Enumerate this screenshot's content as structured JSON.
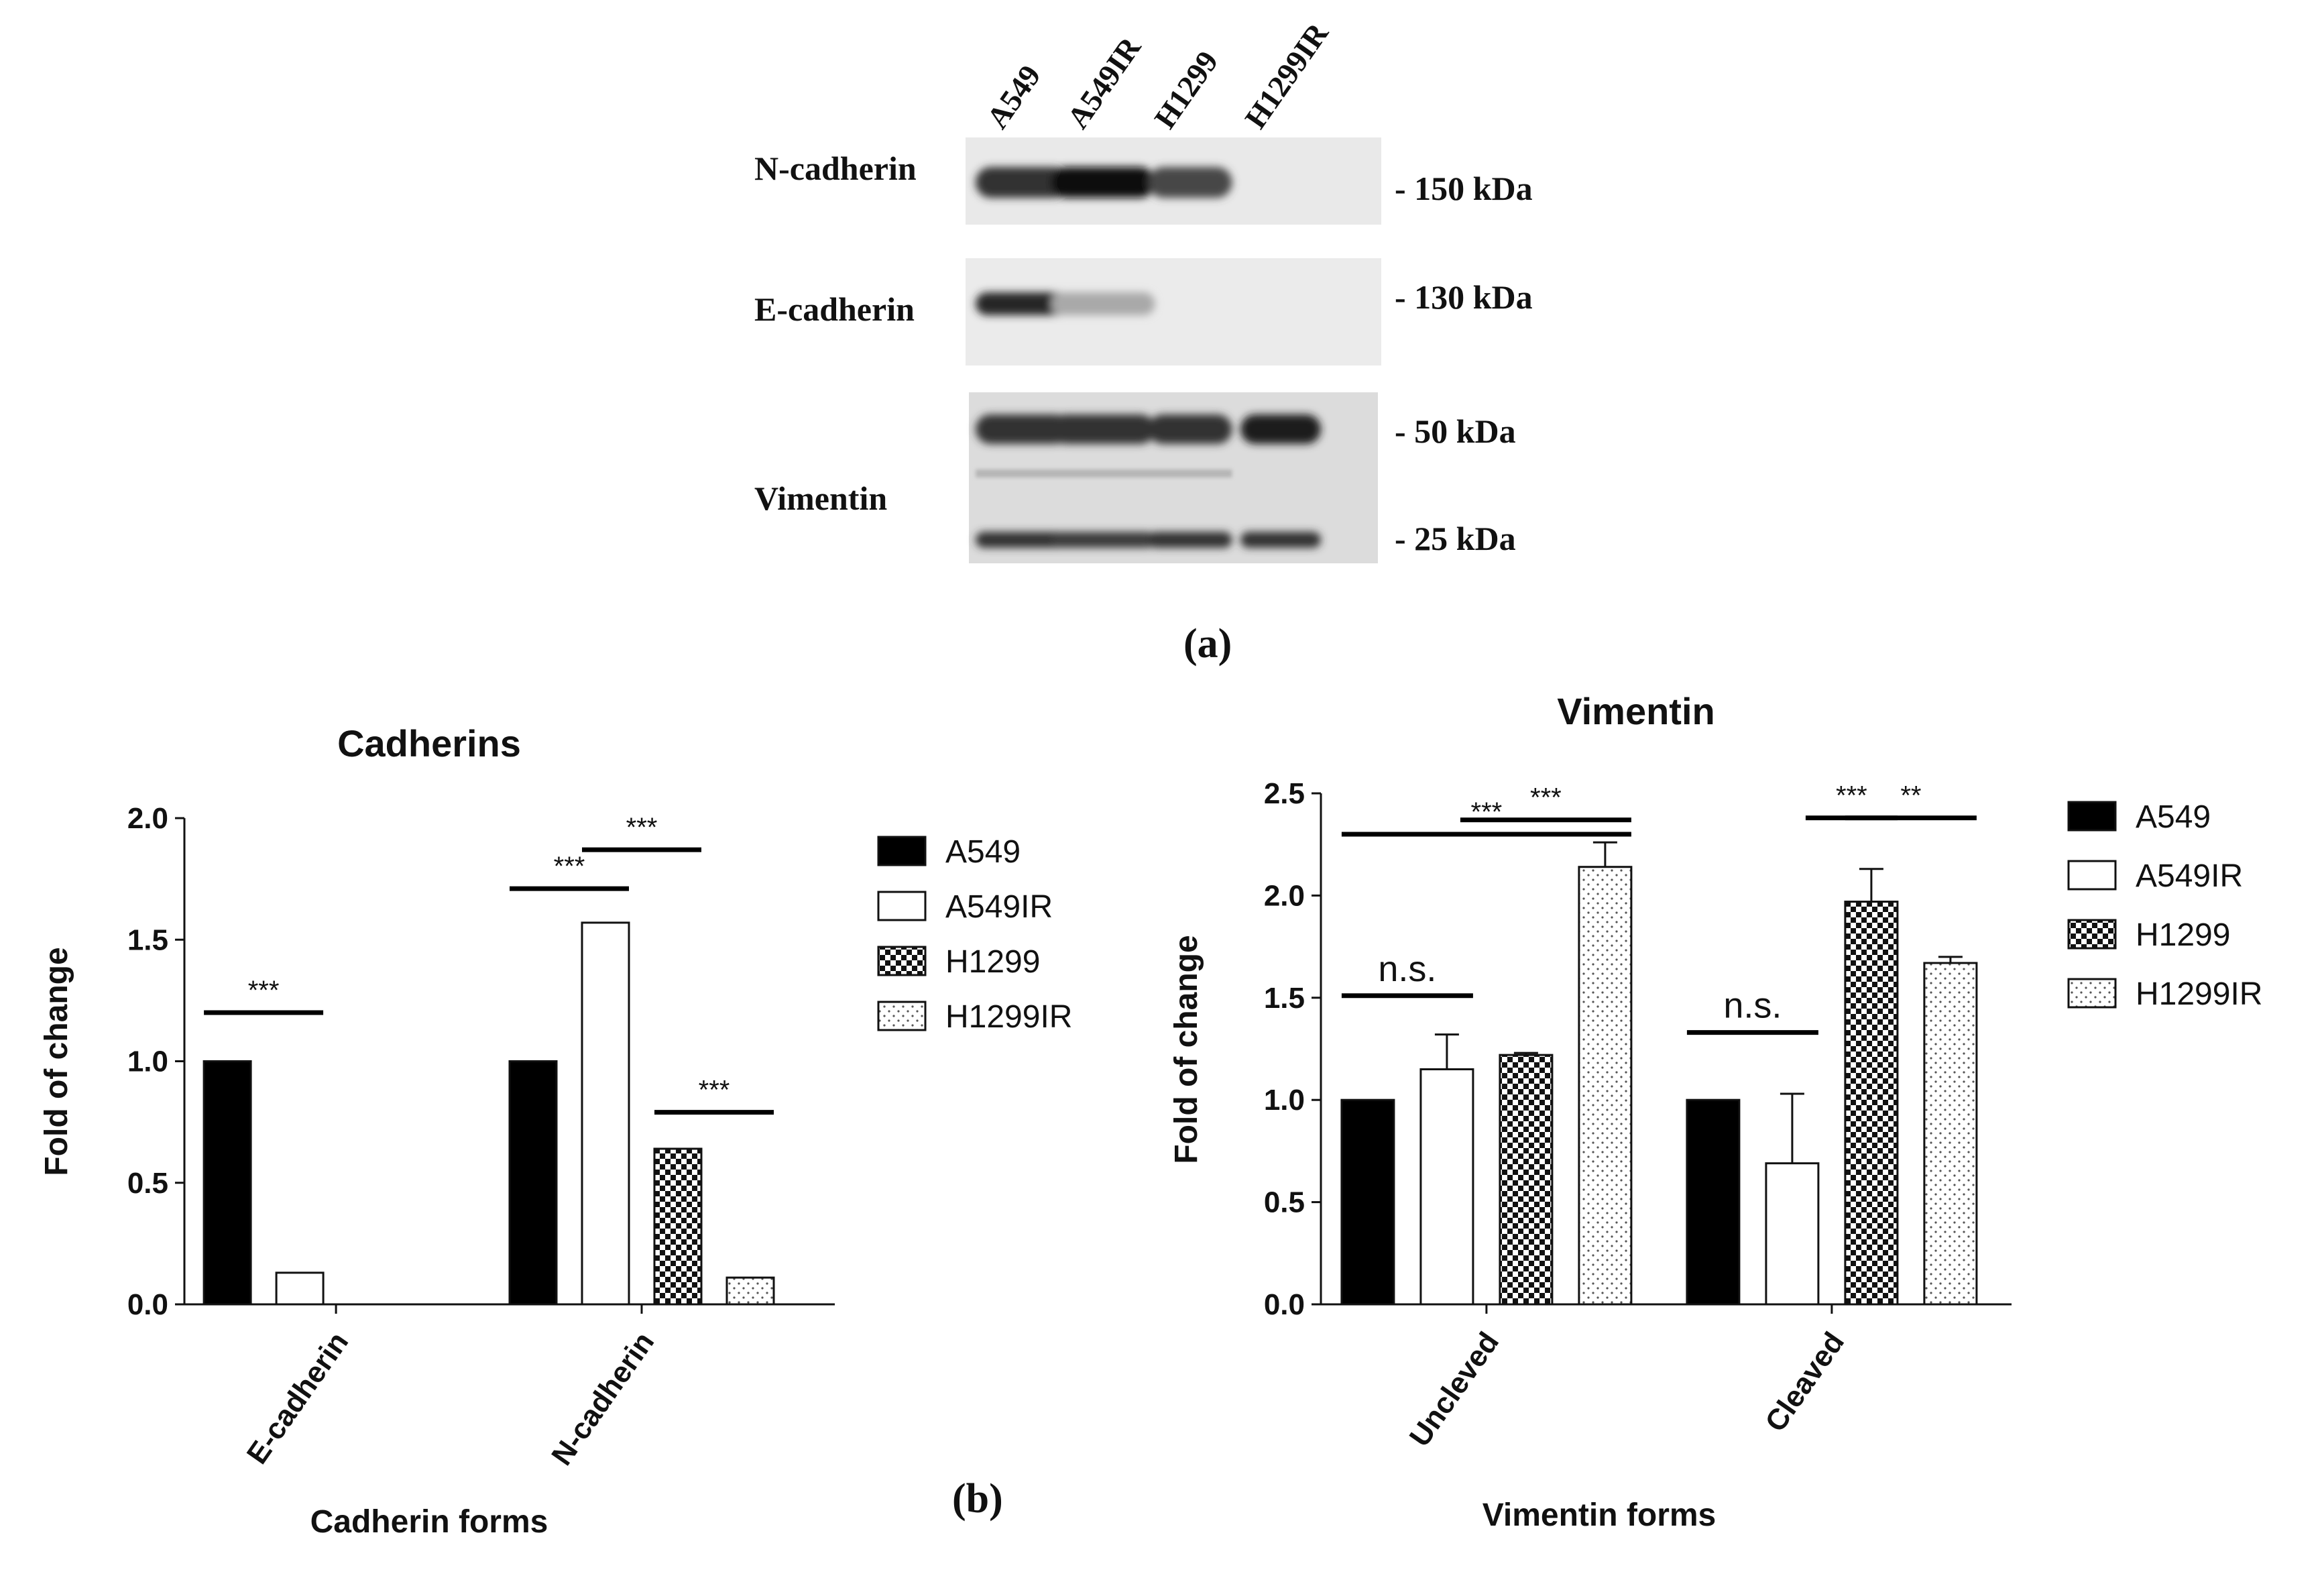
{
  "blot": {
    "lanes": [
      "A549",
      "A549IR",
      "H1299",
      "H1299IR"
    ],
    "rows": [
      {
        "label": "N-cadherin",
        "intensity": [
          0.85,
          1.0,
          0.75,
          0.0
        ]
      },
      {
        "label": "E-cadherin",
        "intensity": [
          0.9,
          0.3,
          0.0,
          0.0
        ]
      },
      {
        "label": "Vimentin",
        "upper_intensity": [
          0.85,
          0.85,
          0.85,
          0.95
        ],
        "lower_intensity": [
          0.85,
          0.8,
          0.85,
          0.85
        ]
      }
    ],
    "markers": [
      "- 150 kDa",
      "- 130 kDa",
      "- 50 kDa",
      "- 25 kDa"
    ],
    "panel_label": "(a)"
  },
  "panel_b_label": "(b)",
  "chart_data": [
    {
      "type": "bar",
      "title": "Cadherins",
      "xlabel": "Cadherin forms",
      "ylabel": "Fold of change",
      "ylim": [
        0,
        2.0
      ],
      "yticks": [
        "0.0",
        "0.5",
        "1.0",
        "1.5",
        "2.0"
      ],
      "categories": [
        "E-cadherin",
        "N-cadherin"
      ],
      "series": [
        {
          "name": "A549",
          "values": [
            1.0,
            1.0
          ],
          "pattern": "solid"
        },
        {
          "name": "A549IR",
          "values": [
            0.13,
            1.57
          ],
          "pattern": "open"
        },
        {
          "name": "H1299",
          "values": [
            0.0,
            0.64
          ],
          "pattern": "checker"
        },
        {
          "name": "H1299IR",
          "values": [
            0.0,
            0.11
          ],
          "pattern": "dots"
        }
      ],
      "significance": [
        {
          "label": "***",
          "category": 0,
          "from": 0,
          "to": 1,
          "y": 1.2
        },
        {
          "label": "***",
          "category": 1,
          "from": 0,
          "to": 1,
          "y": 1.71
        },
        {
          "label": "***",
          "category": 1,
          "from": 1,
          "to": 2,
          "y": 1.87
        },
        {
          "label": "***",
          "category": 1,
          "from": 2,
          "to": 3,
          "y": 0.79
        }
      ],
      "legend": "right"
    },
    {
      "type": "bar",
      "title": "Vimentin",
      "xlabel": "Vimentin forms",
      "ylabel": "Fold of change",
      "ylim": [
        0,
        2.5
      ],
      "yticks": [
        "0.0",
        "0.5",
        "1.0",
        "1.5",
        "2.0",
        "2.5"
      ],
      "categories": [
        "Uncleved",
        "Cleaved"
      ],
      "series": [
        {
          "name": "A549",
          "values": [
            1.0,
            1.0
          ],
          "errors": [
            0,
            0
          ],
          "pattern": "solid"
        },
        {
          "name": "A549IR",
          "values": [
            1.15,
            0.69
          ],
          "errors": [
            0.17,
            0.34
          ],
          "pattern": "open"
        },
        {
          "name": "H1299",
          "values": [
            1.22,
            1.97
          ],
          "errors": [
            0.01,
            0.16
          ],
          "pattern": "checker"
        },
        {
          "name": "H1299IR",
          "values": [
            2.14,
            1.67
          ],
          "errors": [
            0.12,
            0.03
          ],
          "pattern": "dots"
        }
      ],
      "significance": [
        {
          "label": "n.s.",
          "category": 0,
          "from": 0,
          "to": 1,
          "y": 1.51
        },
        {
          "label": "***",
          "category": 0,
          "from": 1.5,
          "to": 3,
          "y": 2.37
        },
        {
          "label": "***",
          "category": 0,
          "from": 0,
          "to": 3,
          "y": 2.3
        },
        {
          "label": "n.s.",
          "category": 1,
          "from": 0,
          "to": 1,
          "y": 1.33
        },
        {
          "label": "***",
          "category": 1,
          "from": 1.5,
          "to": 2,
          "y": 2.38
        },
        {
          "label": "**",
          "category": 1,
          "from": 2,
          "to": 3,
          "y": 2.38
        }
      ],
      "legend": "right"
    }
  ]
}
